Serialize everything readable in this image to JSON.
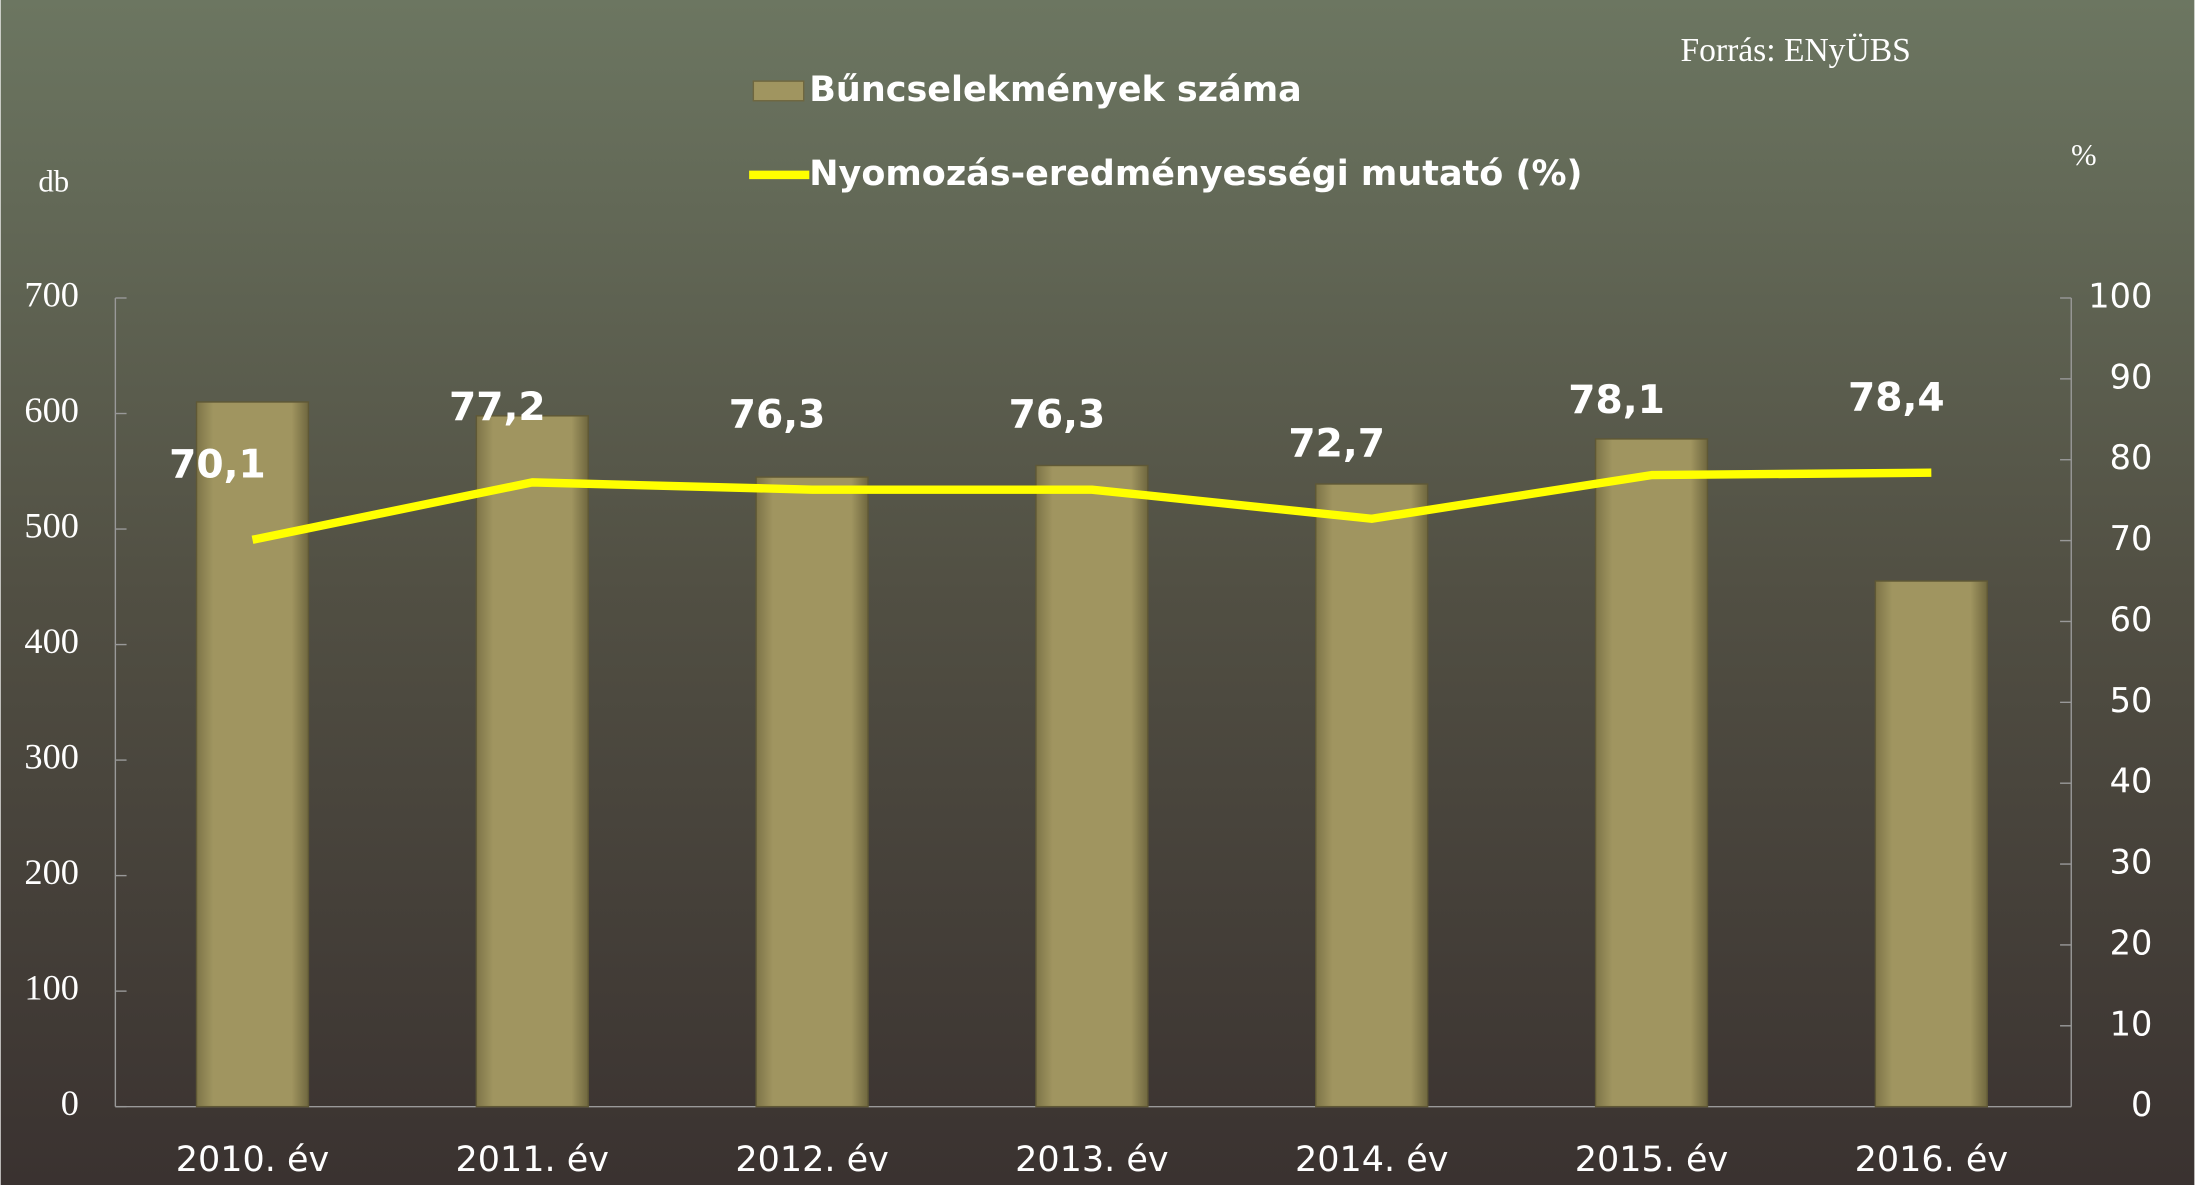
{
  "chart_data": {
    "type": "bar_line",
    "source": "Forrás: ENyÜBS",
    "y_label": "db",
    "y2_label": "%",
    "categories": [
      "2010. év",
      "2011. év",
      "2012. év",
      "2013. év",
      "2014. év",
      "2015. év",
      "2016. év"
    ],
    "series": [
      {
        "name": "Bűncselekmények száma",
        "color": "#a09560",
        "type": "bar",
        "values": [
          610,
          598,
          545,
          555,
          539,
          578,
          455
        ]
      },
      {
        "name": "Nyomozás-eredményességi mutató (%)",
        "color": "#ffff00",
        "type": "line",
        "axis": "y2",
        "values": [
          70.1,
          77.2,
          76.3,
          76.3,
          72.7,
          78.1,
          78.4
        ],
        "value_labels": [
          "70,1",
          "77,2",
          "76,3",
          "76,3",
          "72,7",
          "78,1",
          "78,4"
        ]
      }
    ],
    "ylim": [
      0,
      700
    ],
    "yticks": [
      0,
      100,
      200,
      300,
      400,
      500,
      600,
      700
    ],
    "y2lim": [
      0,
      100
    ],
    "y2ticks": [
      0,
      10,
      20,
      30,
      40,
      50,
      60,
      70,
      80,
      90,
      100
    ]
  }
}
